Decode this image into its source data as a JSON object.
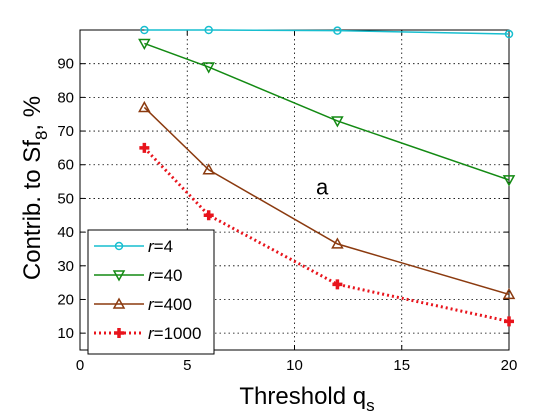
{
  "chart_data": {
    "type": "line",
    "xlabel": "Threshold q",
    "xlabel_sub": "s",
    "ylabel": "Contrib. to Sf",
    "ylabel_sub": "8",
    "ylabel_suffix": ", %",
    "xlim": [
      0,
      20
    ],
    "ylim": [
      5,
      100
    ],
    "xticks": [
      0,
      5,
      10,
      15,
      20
    ],
    "yticks": [
      10,
      20,
      30,
      40,
      50,
      60,
      70,
      80,
      90
    ],
    "grid": true,
    "annotation": {
      "text": "a",
      "x": 11,
      "y": 53.5
    },
    "legend_position": "bottom-left",
    "series": [
      {
        "name": "r=4",
        "name_italic": "r",
        "name_rest": "=4",
        "color": "#17becf",
        "marker": "circle",
        "linestyle": "solid",
        "x": [
          3,
          6,
          12,
          20
        ],
        "y": [
          100,
          100,
          99.8,
          98.8
        ]
      },
      {
        "name": "r=40",
        "name_italic": "r",
        "name_rest": "=40",
        "color": "#138a13",
        "marker": "triangle-down",
        "linestyle": "solid",
        "x": [
          3,
          6,
          12,
          20
        ],
        "y": [
          96,
          89,
          73,
          55.5
        ]
      },
      {
        "name": "r=400",
        "name_italic": "r",
        "name_rest": "=400",
        "color": "#8b3a0f",
        "marker": "triangle-up",
        "linestyle": "solid",
        "x": [
          3,
          6,
          12,
          20
        ],
        "y": [
          77,
          58.5,
          36.5,
          21.5
        ]
      },
      {
        "name": "r=1000",
        "name_italic": "r",
        "name_rest": "=1000",
        "color": "#e8141c",
        "marker": "plus",
        "linestyle": "dotted",
        "x": [
          3,
          6,
          12,
          20
        ],
        "y": [
          65,
          45,
          24.5,
          13.5
        ]
      }
    ]
  }
}
